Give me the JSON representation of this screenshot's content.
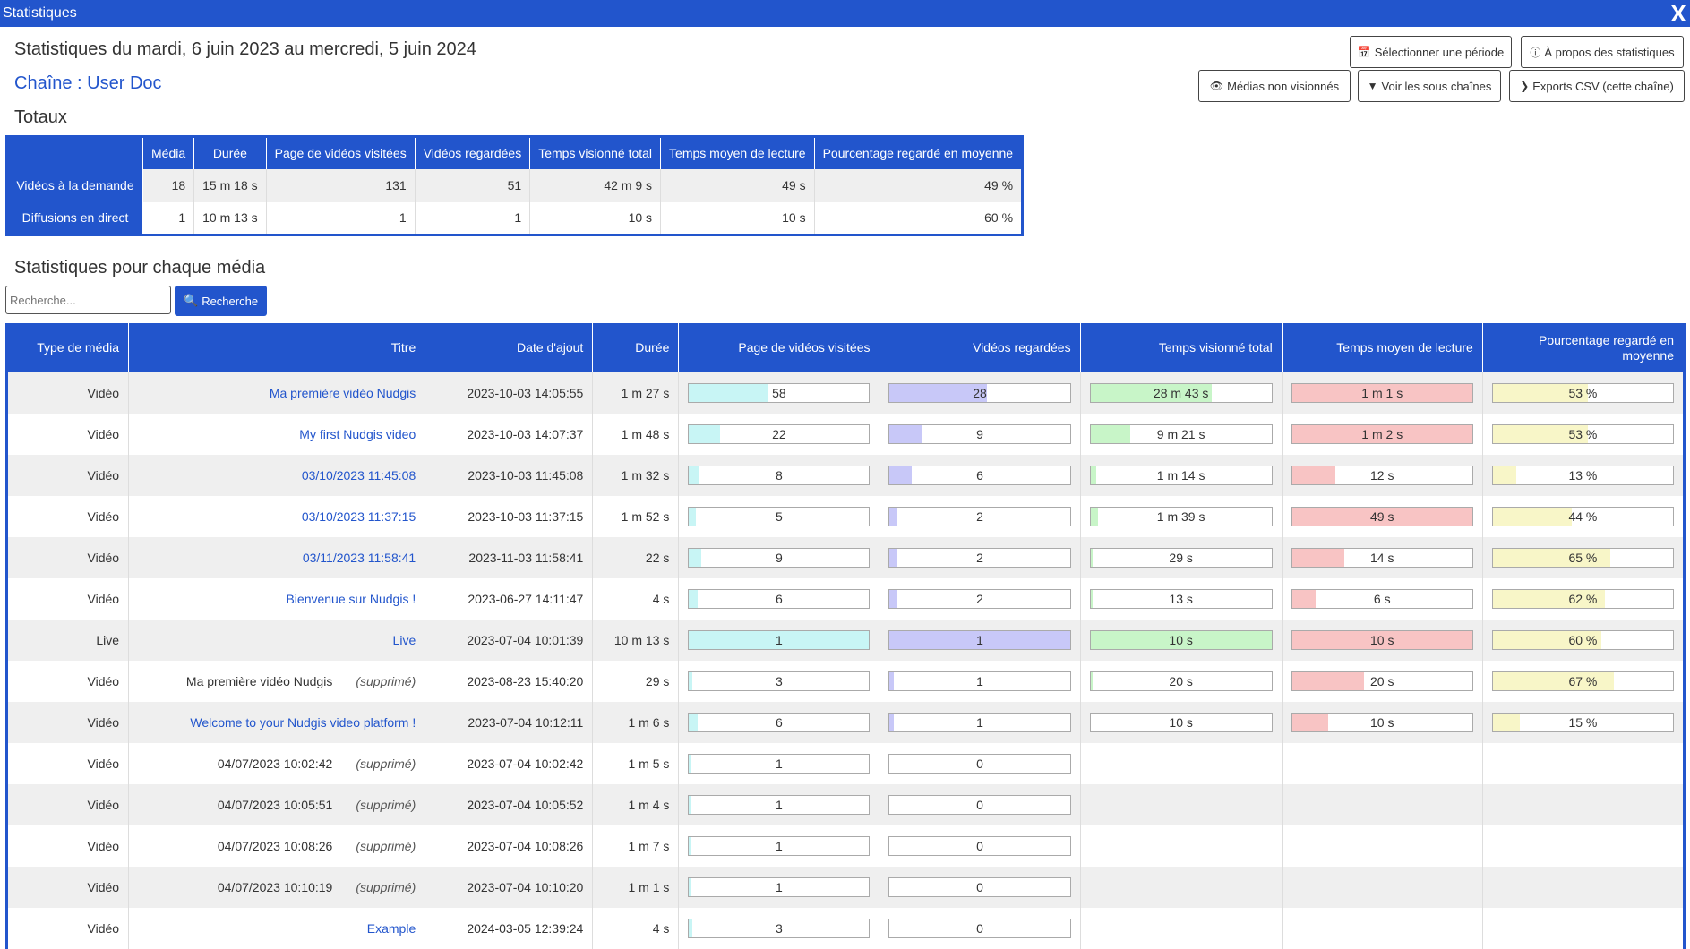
{
  "window": {
    "title": "Statistiques",
    "close_label": "X"
  },
  "header": {
    "period": "Statistiques du mardi, 6 juin 2023 au mercredi, 5 juin 2024",
    "channel": "Chaîne : User Doc",
    "buttons": {
      "select_period": "Sélectionner une période",
      "about": "À propos des statistiques",
      "unviewed": "Médias non visionnés",
      "subchannels": "Voir les sous chaînes",
      "export_csv": "Exports CSV (cette chaîne)"
    }
  },
  "totals": {
    "title": "Totaux",
    "columns": [
      "Média",
      "Durée",
      "Page de vidéos visitées",
      "Vidéos regardées",
      "Temps visionné total",
      "Temps moyen de lecture",
      "Pourcentage regardé en moyenne"
    ],
    "rows": [
      {
        "label": "Vidéos à la demande",
        "cells": [
          "18",
          "15 m 18 s",
          "131",
          "51",
          "42 m 9 s",
          "49 s",
          "49 %"
        ]
      },
      {
        "label": "Diffusions en direct",
        "cells": [
          "1",
          "10 m 13 s",
          "1",
          "1",
          "10 s",
          "10 s",
          "60 %"
        ]
      }
    ]
  },
  "per_media": {
    "title": "Statistiques pour chaque média",
    "search": {
      "placeholder": "Recherche...",
      "button": "Recherche"
    },
    "columns": [
      "Type de média",
      "Titre",
      "Date d'ajout",
      "Durée",
      "Page de vidéos visitées",
      "Vidéos regardées",
      "Temps visionné total",
      "Temps moyen de lecture",
      "Pourcentage regardé en moyenne"
    ],
    "rows": [
      {
        "type": "Vidéo",
        "title": "Ma première vidéo Nudgis",
        "deleted": "",
        "date": "2023-10-03 14:05:55",
        "duration": "1 m 27 s",
        "pages": "58",
        "pages_pct": 44,
        "views": "28",
        "views_pct": 54,
        "total_time": "28 m 43 s",
        "total_pct": 67,
        "avg_time": "1 m 1 s",
        "avg_pct": 100,
        "percent": "53 %",
        "percent_pct": 53
      },
      {
        "type": "Vidéo",
        "title": "My first Nudgis video",
        "deleted": "",
        "date": "2023-10-03 14:07:37",
        "duration": "1 m 48 s",
        "pages": "22",
        "pages_pct": 17,
        "views": "9",
        "views_pct": 18,
        "total_time": "9 m 21 s",
        "total_pct": 22,
        "avg_time": "1 m 2 s",
        "avg_pct": 100,
        "percent": "53 %",
        "percent_pct": 53
      },
      {
        "type": "Vidéo",
        "title": "03/10/2023 11:45:08",
        "deleted": "",
        "date": "2023-10-03 11:45:08",
        "duration": "1 m 32 s",
        "pages": "8",
        "pages_pct": 6,
        "views": "6",
        "views_pct": 12,
        "total_time": "1 m 14 s",
        "total_pct": 3,
        "avg_time": "12 s",
        "avg_pct": 24,
        "percent": "13 %",
        "percent_pct": 13
      },
      {
        "type": "Vidéo",
        "title": "03/10/2023 11:37:15",
        "deleted": "",
        "date": "2023-10-03 11:37:15",
        "duration": "1 m 52 s",
        "pages": "5",
        "pages_pct": 4,
        "views": "2",
        "views_pct": 4,
        "total_time": "1 m 39 s",
        "total_pct": 4,
        "avg_time": "49 s",
        "avg_pct": 100,
        "percent": "44 %",
        "percent_pct": 44
      },
      {
        "type": "Vidéo",
        "title": "03/11/2023 11:58:41",
        "deleted": "",
        "date": "2023-11-03 11:58:41",
        "duration": "22 s",
        "pages": "9",
        "pages_pct": 7,
        "views": "2",
        "views_pct": 4,
        "total_time": "29 s",
        "total_pct": 1,
        "avg_time": "14 s",
        "avg_pct": 29,
        "percent": "65 %",
        "percent_pct": 65
      },
      {
        "type": "Vidéo",
        "title": "Bienvenue sur Nudgis !",
        "deleted": "",
        "date": "2023-06-27 14:11:47",
        "duration": "4 s",
        "pages": "6",
        "pages_pct": 5,
        "views": "2",
        "views_pct": 4,
        "total_time": "13 s",
        "total_pct": 1,
        "avg_time": "6 s",
        "avg_pct": 13,
        "percent": "62 %",
        "percent_pct": 62
      },
      {
        "type": "Live",
        "title": "Live",
        "deleted": "",
        "date": "2023-07-04 10:01:39",
        "duration": "10 m 13 s",
        "pages": "1",
        "pages_pct": 100,
        "views": "1",
        "views_pct": 100,
        "total_time": "10 s",
        "total_pct": 100,
        "avg_time": "10 s",
        "avg_pct": 100,
        "percent": "60 %",
        "percent_pct": 60
      },
      {
        "type": "Vidéo",
        "title": "Ma première vidéo Nudgis",
        "deleted": "(supprimé)",
        "date": "2023-08-23 15:40:20",
        "duration": "29 s",
        "pages": "3",
        "pages_pct": 2,
        "views": "1",
        "views_pct": 2,
        "total_time": "20 s",
        "total_pct": 1,
        "avg_time": "20 s",
        "avg_pct": 40,
        "percent": "67 %",
        "percent_pct": 67
      },
      {
        "type": "Vidéo",
        "title": "Welcome to your Nudgis video platform !",
        "deleted": "",
        "date": "2023-07-04 10:12:11",
        "duration": "1 m 6 s",
        "pages": "6",
        "pages_pct": 5,
        "views": "1",
        "views_pct": 2,
        "total_time": "10 s",
        "total_pct": 0,
        "avg_time": "10 s",
        "avg_pct": 20,
        "percent": "15 %",
        "percent_pct": 15
      },
      {
        "type": "Vidéo",
        "title": "04/07/2023 10:02:42",
        "deleted": "(supprimé)",
        "date": "2023-07-04 10:02:42",
        "duration": "1 m 5 s",
        "pages": "1",
        "pages_pct": 1,
        "views": "0",
        "views_pct": 0,
        "total_time": "",
        "total_pct": -1,
        "avg_time": "",
        "avg_pct": -1,
        "percent": "",
        "percent_pct": -1
      },
      {
        "type": "Vidéo",
        "title": "04/07/2023 10:05:51",
        "deleted": "(supprimé)",
        "date": "2023-07-04 10:05:52",
        "duration": "1 m 4 s",
        "pages": "1",
        "pages_pct": 1,
        "views": "0",
        "views_pct": 0,
        "total_time": "",
        "total_pct": -1,
        "avg_time": "",
        "avg_pct": -1,
        "percent": "",
        "percent_pct": -1
      },
      {
        "type": "Vidéo",
        "title": "04/07/2023 10:08:26",
        "deleted": "(supprimé)",
        "date": "2023-07-04 10:08:26",
        "duration": "1 m 7 s",
        "pages": "1",
        "pages_pct": 1,
        "views": "0",
        "views_pct": 0,
        "total_time": "",
        "total_pct": -1,
        "avg_time": "",
        "avg_pct": -1,
        "percent": "",
        "percent_pct": -1
      },
      {
        "type": "Vidéo",
        "title": "04/07/2023 10:10:19",
        "deleted": "(supprimé)",
        "date": "2023-07-04 10:10:20",
        "duration": "1 m 1 s",
        "pages": "1",
        "pages_pct": 1,
        "views": "0",
        "views_pct": 0,
        "total_time": "",
        "total_pct": -1,
        "avg_time": "",
        "avg_pct": -1,
        "percent": "",
        "percent_pct": -1
      },
      {
        "type": "Vidéo",
        "title": "Example",
        "deleted": "",
        "date": "2024-03-05 12:39:24",
        "duration": "4 s",
        "pages": "3",
        "pages_pct": 2,
        "views": "0",
        "views_pct": 0,
        "total_time": "",
        "total_pct": -1,
        "avg_time": "",
        "avg_pct": -1,
        "percent": "",
        "percent_pct": -1
      }
    ]
  },
  "icons": {
    "calendar": "calendar-icon",
    "info": "info-icon",
    "eye_slash": "eye-slash-icon",
    "filter": "filter-icon",
    "chevron": "chevron-right-icon",
    "search": "search-icon"
  },
  "colors": {
    "accent": "#2255cc",
    "pages_bar": "#c8f5f5",
    "views_bar": "#c8c8f8",
    "total_bar": "#c8f5c8",
    "avg_bar": "#f8c4c4",
    "percent_bar": "#f8f6c8"
  }
}
